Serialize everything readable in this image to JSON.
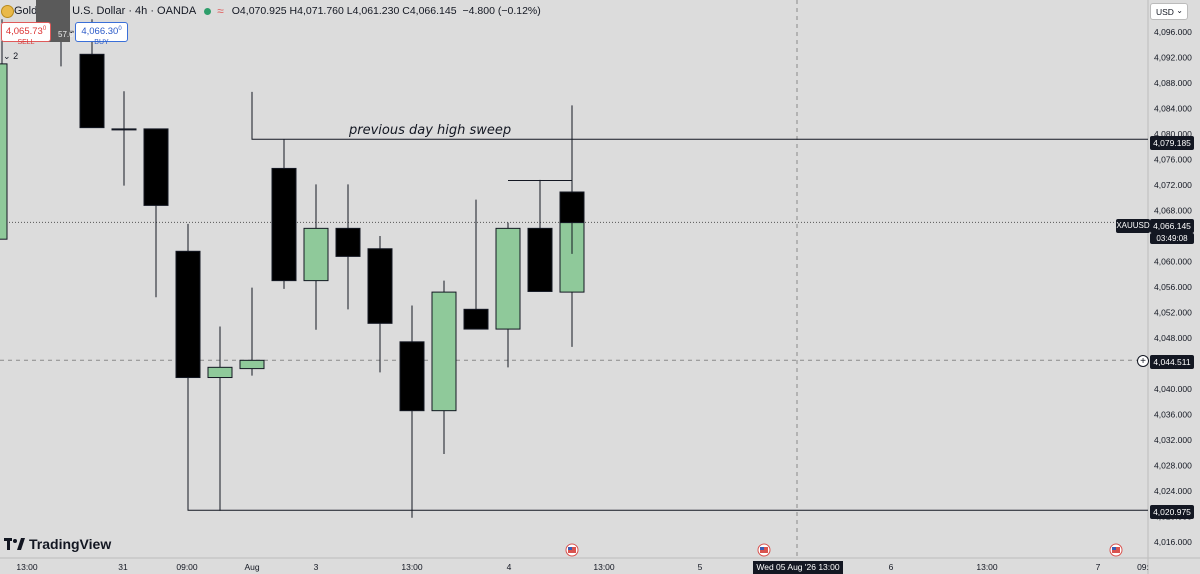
{
  "header": {
    "symbol_title": "Gold Spot / U.S. Dollar · 4h · OANDA",
    "ohlc": "O4,070.925 H4,071.760 L4,061.230 C4,066.145",
    "change": "−4.800 (−0.12%)",
    "status_dot_color": "#2e9e6b",
    "status_icon": "tilde-icon"
  },
  "toolbar": {
    "spread": "57.0"
  },
  "trade": {
    "sell_price": "4,065.73",
    "sell_price_sup": "0",
    "sell_label": "SELL",
    "buy_price": "4,066.30",
    "buy_price_sup": "0",
    "buy_label": "BUY"
  },
  "legend_toggle": {
    "count": "2"
  },
  "currency": {
    "label": "USD"
  },
  "annotation": {
    "text": "previous day high sweep"
  },
  "price_labels": {
    "high_sweep": "4,079.185",
    "current": "4,066.145",
    "countdown": "03:49:08",
    "symbol_tag": "XAUUSD",
    "crosshair": "4,044.511",
    "low_level": "4,020.975"
  },
  "branding": {
    "logo": "TradingView"
  },
  "time_axis": {
    "hover_label": "Wed 05 Aug '26   13:00",
    "labels": [
      "13:00",
      "31",
      "09:00",
      "Aug",
      "3",
      "13:00",
      "4",
      "13:00",
      "5",
      "6",
      "13:00",
      "7",
      "09:"
    ]
  },
  "colors": {
    "bull": "#8fc99a",
    "bear": "#000000",
    "background": "#dcdcdc"
  },
  "chart_data": {
    "type": "candlestick",
    "y_axis_ticks": [
      4096,
      4092,
      4088,
      4084,
      4080,
      4076,
      4072,
      4068,
      4064,
      4060,
      4056,
      4052,
      4048,
      4044,
      4040,
      4036,
      4032,
      4028,
      4024,
      4020,
      4016
    ],
    "ylim": [
      4014,
      4099
    ],
    "candles": [
      {
        "o": 4063.5,
        "h": 4098,
        "l": 4063.5,
        "c": 4091
      },
      {
        "o": 4096.1,
        "h": 4098,
        "l": 4090.6,
        "c": 4096.1
      },
      {
        "o": 4092.5,
        "h": 4098,
        "l": 4081.0,
        "c": 4081.0
      },
      {
        "o": 4080.8,
        "h": 4086.7,
        "l": 4071.9,
        "c": 4080.8
      },
      {
        "o": 4080.8,
        "h": 4080.8,
        "l": 4054.4,
        "c": 4068.8
      },
      {
        "o": 4061.6,
        "h": 4065.9,
        "l": 4041.8,
        "c": 4041.8
      },
      {
        "o": 4041.8,
        "h": 4049.8,
        "l": 4020.9,
        "c": 4043.4
      },
      {
        "o": 4043.2,
        "h": 4055.9,
        "l": 4042.1,
        "c": 4044.5
      },
      {
        "o": 4074.6,
        "h": 4079.2,
        "l": 4055.7,
        "c": 4057.0
      },
      {
        "o": 4057.0,
        "h": 4072.1,
        "l": 4049.3,
        "c": 4065.2
      },
      {
        "o": 4065.2,
        "h": 4072.1,
        "l": 4052.5,
        "c": 4060.8
      },
      {
        "o": 4062.0,
        "h": 4064.0,
        "l": 4042.6,
        "c": 4050.3
      },
      {
        "o": 4047.4,
        "h": 4053.1,
        "l": 4019.8,
        "c": 4036.6
      },
      {
        "o": 4036.6,
        "h": 4057.0,
        "l": 4029.8,
        "c": 4055.2
      },
      {
        "o": 4052.5,
        "h": 4069.7,
        "l": 4049.4,
        "c": 4049.4
      },
      {
        "o": 4049.4,
        "h": 4066.1,
        "l": 4043.4,
        "c": 4065.2
      },
      {
        "o": 4065.2,
        "h": 4072.8,
        "l": 4055.3,
        "c": 4055.3
      },
      {
        "o": 4055.2,
        "h": 4084.5,
        "l": 4046.6,
        "c": 4070.9
      },
      {
        "o": 4070.9,
        "h": 4071.8,
        "l": 4061.2,
        "c": 4066.1
      }
    ],
    "levels": [
      {
        "label": "previous day high sweep",
        "value": 4079.185
      },
      {
        "value": 4020.975
      }
    ]
  }
}
